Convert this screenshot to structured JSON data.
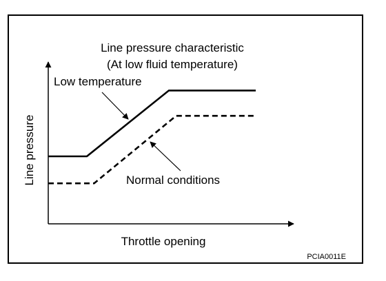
{
  "chart_data": {
    "type": "line",
    "title": [
      "Line pressure characteristic",
      "(At low fluid temperature)"
    ],
    "xlabel": "Throttle opening",
    "ylabel": "Line pressure",
    "xlim": [
      0,
      10
    ],
    "ylim": [
      0,
      10
    ],
    "grid": false,
    "series": [
      {
        "name": "Low temperature",
        "style": "solid",
        "x": [
          0,
          1.6,
          5.0,
          8.6
        ],
        "y": [
          4.0,
          4.0,
          7.9,
          7.9
        ]
      },
      {
        "name": "Normal conditions",
        "style": "dashed",
        "x": [
          0,
          1.9,
          5.3,
          8.6
        ],
        "y": [
          2.4,
          2.4,
          6.4,
          6.4
        ]
      }
    ],
    "figure_code": "PCIA0011E"
  }
}
